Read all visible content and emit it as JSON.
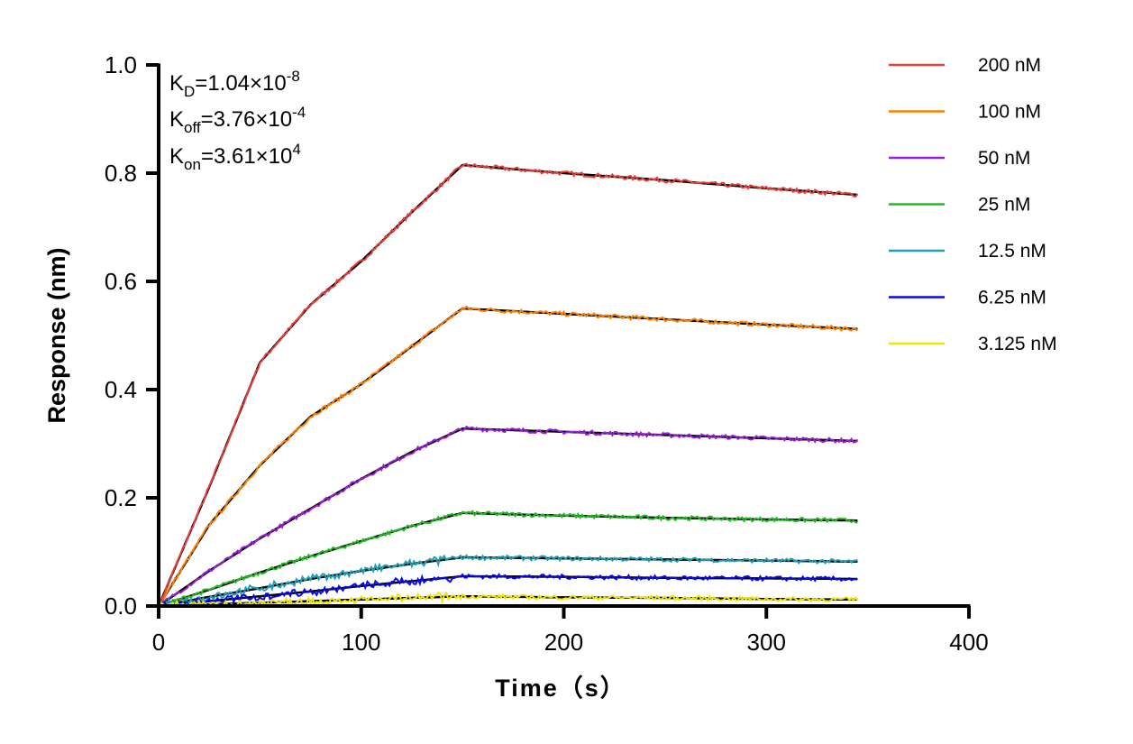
{
  "chart_data": {
    "type": "line",
    "xlabel": "Time（s）",
    "ylabel": "Response (nm)",
    "xlim": [
      0,
      400
    ],
    "ylim": [
      0,
      1.0
    ],
    "xticks": [
      0,
      100,
      200,
      300,
      400
    ],
    "yticks": [
      0.0,
      0.2,
      0.4,
      0.6,
      0.8,
      1.0
    ],
    "xtick_labels": [
      "0",
      "100",
      "200",
      "300",
      "400"
    ],
    "ytick_labels": [
      "0.0",
      "0.2",
      "0.4",
      "0.6",
      "0.8",
      "1.0"
    ],
    "grid": false,
    "legend_position": "right",
    "annotations": {
      "kd": {
        "k": "K",
        "sub": "D",
        "value": "=1.04×10",
        "exp": "-8"
      },
      "koff": {
        "k": "K",
        "sub": "off",
        "value": "=3.76×10",
        "exp": "-4"
      },
      "kon": {
        "k": "K",
        "sub": "on",
        "value": "=3.61×10",
        "exp": "4"
      }
    },
    "fit_color": "#000000",
    "x": [
      0,
      25,
      50,
      75,
      100,
      125,
      150,
      200,
      250,
      300,
      345
    ],
    "series": [
      {
        "name": "200 nM",
        "color": "#e8413c",
        "values": [
          0,
          0.22,
          0.45,
          0.557,
          0.637,
          0.728,
          0.815,
          0.8,
          0.787,
          0.772,
          0.76
        ]
      },
      {
        "name": "100 nM",
        "color": "#ff8000",
        "values": [
          0,
          0.15,
          0.26,
          0.35,
          0.41,
          0.48,
          0.55,
          0.54,
          0.53,
          0.52,
          0.512
        ]
      },
      {
        "name": "50 nM",
        "color": "#9b1fd6",
        "values": [
          0,
          0.065,
          0.125,
          0.18,
          0.235,
          0.285,
          0.328,
          0.322,
          0.316,
          0.31,
          0.305
        ]
      },
      {
        "name": "25 nM",
        "color": "#22bb22",
        "values": [
          0,
          0.03,
          0.062,
          0.092,
          0.12,
          0.148,
          0.172,
          0.167,
          0.163,
          0.16,
          0.158
        ]
      },
      {
        "name": "12.5 nM",
        "color": "#1f9fb5",
        "values": [
          0,
          0.017,
          0.033,
          0.05,
          0.065,
          0.078,
          0.09,
          0.088,
          0.086,
          0.084,
          0.082
        ]
      },
      {
        "name": "6.25 nM",
        "color": "#0a0aee",
        "values": [
          0,
          0.009,
          0.018,
          0.027,
          0.037,
          0.046,
          0.055,
          0.054,
          0.052,
          0.051,
          0.05
        ]
      },
      {
        "name": "3.125 nM",
        "color": "#f2e600",
        "values": [
          0,
          0.003,
          0.006,
          0.009,
          0.012,
          0.015,
          0.018,
          0.016,
          0.015,
          0.013,
          0.012
        ]
      }
    ]
  }
}
